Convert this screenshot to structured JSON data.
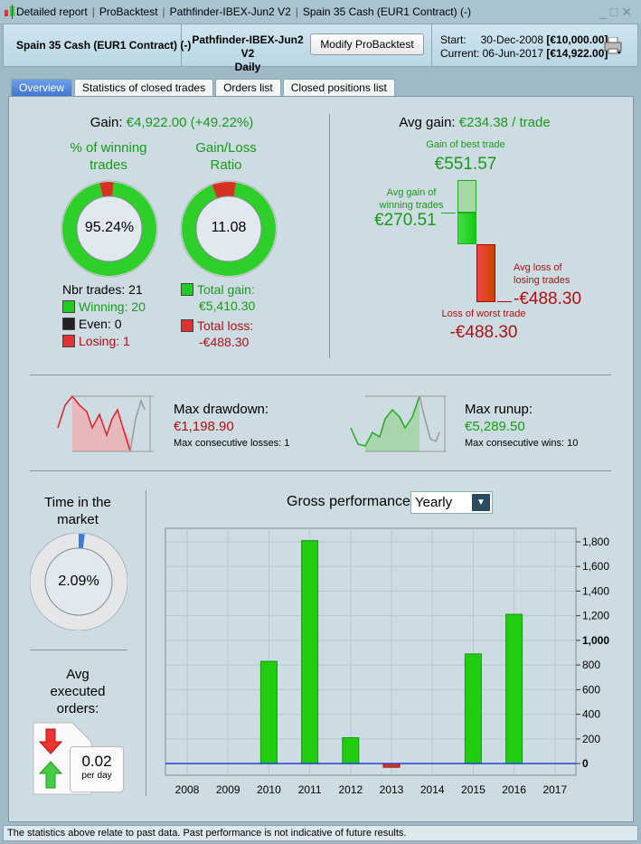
{
  "window": {
    "title_parts": [
      "Detailed report",
      "ProBacktest",
      "Pathfinder-IBEX-Jun2 V2",
      "Spain 35 Cash (EUR1 Contract) (-)"
    ]
  },
  "header": {
    "instrument": "Spain 35 Cash (EUR1 Contract) (-)",
    "system": "Pathfinder-IBEX-Jun2 V2",
    "timeframe": "Daily",
    "modify_label": "Modify ProBacktest",
    "start_label": "Start:",
    "start_date": "30-Dec-2008",
    "start_value": "[€10,000.00]",
    "current_label": "Current:",
    "current_date": "06-Jun-2017",
    "current_value": "[€14,922.00]"
  },
  "tabs": [
    {
      "label": "Overview",
      "active": true
    },
    {
      "label": "Statistics of closed trades"
    },
    {
      "label": "Orders list"
    },
    {
      "label": "Closed positions list"
    }
  ],
  "gain": {
    "label": "Gain:",
    "value": "€4,922.00 (+49.22%)"
  },
  "winning": {
    "title": "% of winning trades",
    "value": "95.24%",
    "percent": 95.24
  },
  "ratio": {
    "title": "Gain/Loss Ratio",
    "value": "11.08",
    "gain_share": 91.7
  },
  "trades": {
    "nbr": "Nbr trades: 21",
    "winning": "Winning: 20",
    "even": "Even: 0",
    "losing": "Losing: 1",
    "total_gain_label": "Total gain:",
    "total_gain": "€5,410.30",
    "total_loss_label": "Total loss:",
    "total_loss": "-€488.30"
  },
  "avg": {
    "label": "Avg gain:",
    "value": "€234.38 / trade",
    "best_label": "Gain of best trade",
    "best": "€551.57",
    "avg_win_label1": "Avg gain of",
    "avg_win_label2": "winning trades",
    "avg_win": "€270.51",
    "avg_loss_label1": "Avg loss of",
    "avg_loss_label2": "losing trades",
    "avg_loss": "-€488.30",
    "worst_label": "Loss of worst trade",
    "worst": "-€488.30"
  },
  "drawdown": {
    "label": "Max drawdown:",
    "value": "€1,198.90",
    "sub": "Max consecutive losses: 1"
  },
  "runup": {
    "label": "Max runup:",
    "value": "€5,289.50",
    "sub": "Max consecutive wins: 10"
  },
  "time_market": {
    "title1": "Time in the",
    "title2": "market",
    "value": "2.09%",
    "percent": 2.09
  },
  "orders": {
    "t1": "Avg",
    "t2": "executed",
    "t3": "orders:",
    "value": "0.02",
    "unit": "per day"
  },
  "perf": {
    "title": "Gross performance",
    "period": "Yearly"
  },
  "chart_data": {
    "type": "bar",
    "categories": [
      "2008",
      "2009",
      "2010",
      "2011",
      "2012",
      "2013",
      "2014",
      "2015",
      "2016",
      "2017"
    ],
    "values": [
      0,
      0,
      830,
      1810,
      210,
      -30,
      0,
      890,
      1212,
      0
    ],
    "ylim": [
      -95,
      1910
    ],
    "yticks": [
      0,
      200,
      400,
      600,
      800,
      1000,
      1200,
      1400,
      1600,
      1800
    ],
    "ytick_labels": [
      "0",
      "200",
      "400",
      "600",
      "800",
      "1,000",
      "1,200",
      "1,400",
      "1,600",
      "1,800"
    ],
    "grid": true,
    "colors": {
      "positive": "#22cc11",
      "negative": "#dd3322",
      "zero_line": "#2233cc"
    }
  },
  "status": "The statistics above relate to past data. Past performance is not indicative of future results."
}
